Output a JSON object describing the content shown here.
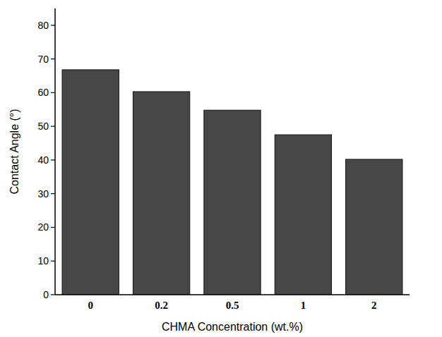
{
  "chart_data": {
    "type": "bar",
    "x_label": "CHMA Concentration (wt.%)",
    "y_label": "Contact Angle (°)",
    "categories": [
      "0",
      "0.2",
      "0.5",
      "1",
      "2"
    ],
    "values": [
      66.8,
      60.3,
      54.8,
      47.5,
      40.2
    ],
    "color": "#474747",
    "ylim": [
      0,
      85
    ],
    "yticks": [
      0,
      10,
      20,
      30,
      40,
      50,
      60,
      70,
      80
    ],
    "grid": false
  }
}
